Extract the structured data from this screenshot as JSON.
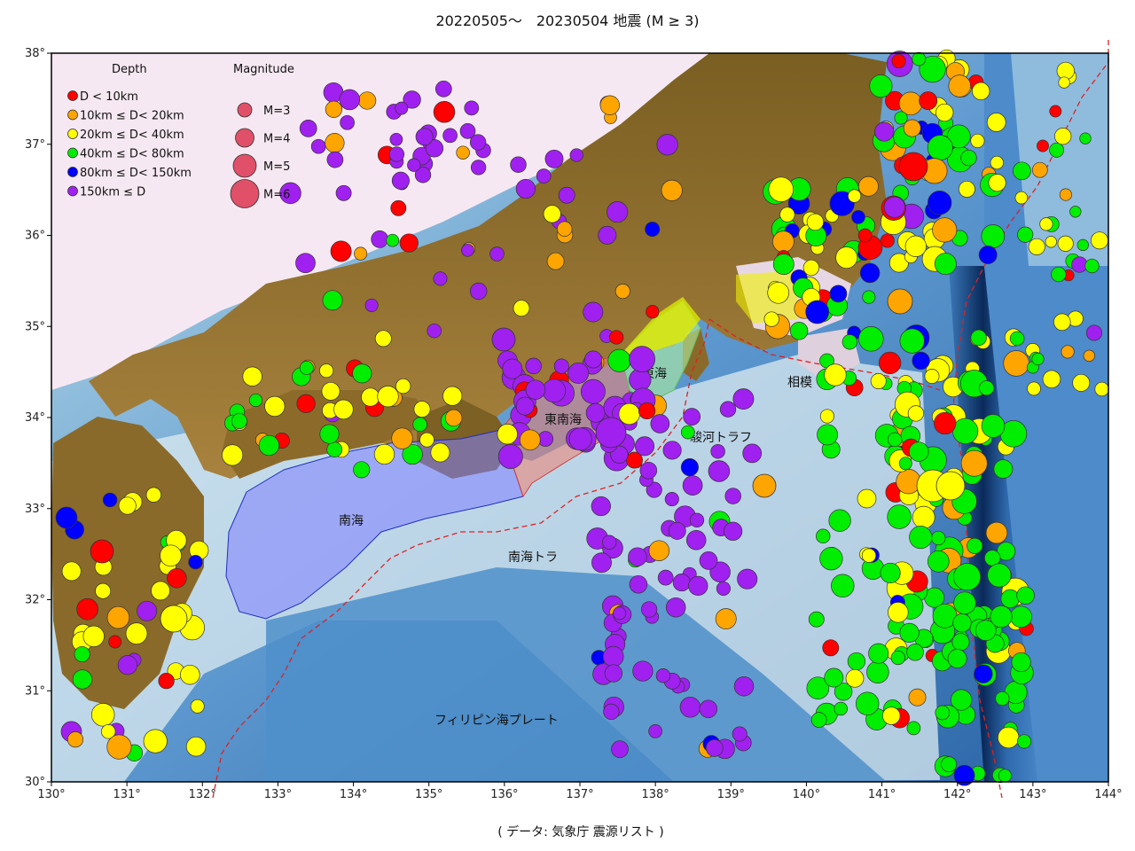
{
  "title": "20220505～　20230504 地震 (M ≥ 3)",
  "footer": "( データ:  気象庁 震源リスト )",
  "axes": {
    "x_ticks": [
      "130°",
      "131°",
      "132°",
      "133°",
      "134°",
      "135°",
      "136°",
      "137°",
      "138°",
      "139°",
      "140°",
      "141°",
      "142°",
      "143°",
      "144°"
    ],
    "y_ticks": [
      "38°",
      "37°",
      "36°",
      "35°",
      "34°",
      "33°",
      "32°",
      "31°",
      "30°"
    ]
  },
  "legend": {
    "depth_title": "Depth",
    "magnitude_title": "Magnitude",
    "depth_items": [
      {
        "label": "D < 10km",
        "color": "#ff0000"
      },
      {
        "label": "10km ≤ D< 20km",
        "color": "#ffa500"
      },
      {
        "label": "20km ≤ D< 40km",
        "color": "#ffff00"
      },
      {
        "label": "40km ≤ D< 80km",
        "color": "#00ee00"
      },
      {
        "label": "80km ≤ D< 150km",
        "color": "#0000ff"
      },
      {
        "label": "150km ≤ D",
        "color": "#a020f0"
      }
    ],
    "magnitude_items": [
      {
        "label": "M=3",
        "magnitude": 3
      },
      {
        "label": "M=4",
        "magnitude": 4
      },
      {
        "label": "M=5",
        "magnitude": 5
      },
      {
        "label": "M=6",
        "magnitude": 6
      }
    ],
    "magnitude_color": "#e05068"
  },
  "map_labels": {
    "nankai": "南海",
    "tonankai": "東南海",
    "tokai": "東海",
    "sagami": "相模",
    "suruga": "駿河トラフ",
    "nankai_trough": "南海トラ",
    "philippine": "フィリピン海プレート"
  },
  "colors": {
    "ocean_deep": "#1e5a9a",
    "ocean": "#6fa8d8",
    "shelf": "#e8f2f2",
    "land_low": "#f4e4f0",
    "land_mid": "#a07a3a",
    "land_high": "#5e4a14",
    "plate_boundary": "#dd2222"
  }
}
